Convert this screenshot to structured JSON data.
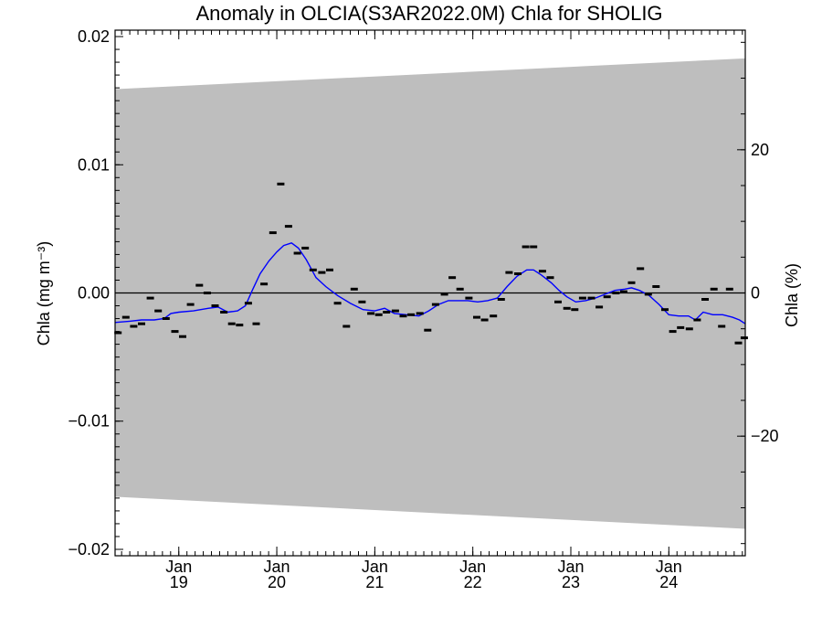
{
  "chart_data": {
    "type": "line",
    "title": "Anomaly in OLCIA(S3AR2022.0M) Chla for SHOLIG",
    "ylabel_left": "Chla (mg m⁻³)",
    "ylabel_right": "Chla (%)",
    "xlim": [
      2018.35,
      2024.78
    ],
    "ylim_left": [
      -0.0205,
      0.0205
    ],
    "ylim_right": [
      -36.7,
      36.7
    ],
    "x_ticks": [
      {
        "x": 2019.0,
        "top": "Jan",
        "bottom": "19"
      },
      {
        "x": 2020.0,
        "top": "Jan",
        "bottom": "20"
      },
      {
        "x": 2021.0,
        "top": "Jan",
        "bottom": "21"
      },
      {
        "x": 2022.0,
        "top": "Jan",
        "bottom": "22"
      },
      {
        "x": 2023.0,
        "top": "Jan",
        "bottom": "23"
      },
      {
        "x": 2024.0,
        "top": "Jan",
        "bottom": "24"
      }
    ],
    "y_ticks_left": [
      {
        "v": 0.02,
        "label": "0.02"
      },
      {
        "v": 0.01,
        "label": "0.01"
      },
      {
        "v": 0.0,
        "label": "0.00"
      },
      {
        "v": -0.01,
        "label": "−0.01"
      },
      {
        "v": -0.02,
        "label": "−0.02"
      }
    ],
    "y_ticks_right": [
      {
        "v": 20,
        "label": "20"
      },
      {
        "v": 0,
        "label": "0"
      },
      {
        "v": -20,
        "label": "−20"
      }
    ],
    "envelope": {
      "color": "#bebebe",
      "upper": [
        [
          2018.35,
          0.0159
        ],
        [
          2024.78,
          0.0183
        ]
      ],
      "lower": [
        [
          2018.35,
          -0.0159
        ],
        [
          2024.78,
          -0.0184
        ]
      ]
    },
    "zero_line_color": "#000000",
    "smooth_color": "#0000ff",
    "series": [
      {
        "kind": "monthly_points",
        "color": "#000000",
        "points": [
          [
            2018.38,
            -0.0031
          ],
          [
            2018.46,
            -0.0019
          ],
          [
            2018.54,
            -0.0026
          ],
          [
            2018.62,
            -0.0024
          ],
          [
            2018.71,
            -0.0004
          ],
          [
            2018.79,
            -0.0014
          ],
          [
            2018.87,
            -0.002
          ],
          [
            2018.96,
            -0.003
          ],
          [
            2019.04,
            -0.0034
          ],
          [
            2019.12,
            -0.0009
          ],
          [
            2019.21,
            0.0006
          ],
          [
            2019.29,
            0.0
          ],
          [
            2019.37,
            -0.001
          ],
          [
            2019.46,
            -0.0015
          ],
          [
            2019.54,
            -0.0024
          ],
          [
            2019.62,
            -0.0025
          ],
          [
            2019.71,
            -0.0008
          ],
          [
            2019.79,
            -0.0024
          ],
          [
            2019.87,
            0.0007
          ],
          [
            2019.96,
            0.0047
          ],
          [
            2020.04,
            0.0085
          ],
          [
            2020.12,
            0.0052
          ],
          [
            2020.21,
            0.0031
          ],
          [
            2020.29,
            0.0035
          ],
          [
            2020.37,
            0.0018
          ],
          [
            2020.46,
            0.0016
          ],
          [
            2020.54,
            0.0018
          ],
          [
            2020.62,
            -0.0008
          ],
          [
            2020.71,
            -0.0026
          ],
          [
            2020.79,
            0.0003
          ],
          [
            2020.87,
            -0.0007
          ],
          [
            2020.96,
            -0.0016
          ],
          [
            2021.04,
            -0.0017
          ],
          [
            2021.12,
            -0.0015
          ],
          [
            2021.21,
            -0.0014
          ],
          [
            2021.29,
            -0.0018
          ],
          [
            2021.37,
            -0.0017
          ],
          [
            2021.46,
            -0.0016
          ],
          [
            2021.54,
            -0.0029
          ],
          [
            2021.62,
            -0.0009
          ],
          [
            2021.71,
            -0.0001
          ],
          [
            2021.79,
            0.0012
          ],
          [
            2021.87,
            0.0003
          ],
          [
            2021.96,
            -0.0004
          ],
          [
            2022.04,
            -0.0019
          ],
          [
            2022.12,
            -0.0021
          ],
          [
            2022.21,
            -0.0018
          ],
          [
            2022.29,
            -0.0005
          ],
          [
            2022.37,
            0.0016
          ],
          [
            2022.46,
            0.0015
          ],
          [
            2022.54,
            0.0036
          ],
          [
            2022.62,
            0.0036
          ],
          [
            2022.71,
            0.0017
          ],
          [
            2022.79,
            0.0012
          ],
          [
            2022.87,
            -0.0007
          ],
          [
            2022.96,
            -0.0012
          ],
          [
            2023.04,
            -0.0013
          ],
          [
            2023.12,
            -0.0004
          ],
          [
            2023.21,
            -0.0004
          ],
          [
            2023.29,
            -0.0011
          ],
          [
            2023.37,
            -0.0003
          ],
          [
            2023.46,
            0.0
          ],
          [
            2023.54,
            0.0001
          ],
          [
            2023.62,
            0.0008
          ],
          [
            2023.71,
            0.0019
          ],
          [
            2023.79,
            -0.0001
          ],
          [
            2023.87,
            0.0005
          ],
          [
            2023.96,
            -0.0013
          ],
          [
            2024.04,
            -0.003
          ],
          [
            2024.12,
            -0.0027
          ],
          [
            2024.21,
            -0.0028
          ],
          [
            2024.29,
            -0.0021
          ],
          [
            2024.37,
            -0.0005
          ],
          [
            2024.46,
            0.0003
          ],
          [
            2024.54,
            -0.0026
          ],
          [
            2024.62,
            0.0003
          ],
          [
            2024.71,
            -0.0039
          ],
          [
            2024.77,
            -0.0035
          ]
        ]
      },
      {
        "kind": "smoothed_line",
        "color": "#0000ff",
        "points": [
          [
            2018.35,
            -0.0023
          ],
          [
            2018.5,
            -0.0022
          ],
          [
            2018.62,
            -0.0021
          ],
          [
            2018.75,
            -0.0021
          ],
          [
            2018.85,
            -0.002
          ],
          [
            2018.92,
            -0.0016
          ],
          [
            2019.0,
            -0.0015
          ],
          [
            2019.15,
            -0.0014
          ],
          [
            2019.3,
            -0.0012
          ],
          [
            2019.4,
            -0.0011
          ],
          [
            2019.5,
            -0.0015
          ],
          [
            2019.6,
            -0.0014
          ],
          [
            2019.68,
            -0.001
          ],
          [
            2019.75,
            0.0002
          ],
          [
            2019.83,
            0.0015
          ],
          [
            2019.92,
            0.0025
          ],
          [
            2020.0,
            0.0032
          ],
          [
            2020.07,
            0.0037
          ],
          [
            2020.15,
            0.0039
          ],
          [
            2020.22,
            0.0035
          ],
          [
            2020.3,
            0.0026
          ],
          [
            2020.4,
            0.0012
          ],
          [
            2020.5,
            0.0005
          ],
          [
            2020.62,
            -0.0002
          ],
          [
            2020.75,
            -0.0008
          ],
          [
            2020.88,
            -0.0013
          ],
          [
            2021.0,
            -0.0014
          ],
          [
            2021.1,
            -0.0012
          ],
          [
            2021.2,
            -0.0016
          ],
          [
            2021.32,
            -0.0017
          ],
          [
            2021.45,
            -0.0018
          ],
          [
            2021.55,
            -0.0014
          ],
          [
            2021.65,
            -0.0009
          ],
          [
            2021.75,
            -0.0006
          ],
          [
            2021.85,
            -0.0006
          ],
          [
            2021.95,
            -0.0006
          ],
          [
            2022.05,
            -0.0007
          ],
          [
            2022.15,
            -0.0006
          ],
          [
            2022.25,
            -0.0004
          ],
          [
            2022.35,
            0.0005
          ],
          [
            2022.45,
            0.0013
          ],
          [
            2022.55,
            0.0018
          ],
          [
            2022.62,
            0.0018
          ],
          [
            2022.7,
            0.0014
          ],
          [
            2022.8,
            0.0008
          ],
          [
            2022.88,
            0.0002
          ],
          [
            2022.96,
            -0.0003
          ],
          [
            2023.05,
            -0.0007
          ],
          [
            2023.15,
            -0.0006
          ],
          [
            2023.25,
            -0.0004
          ],
          [
            2023.35,
            -0.0001
          ],
          [
            2023.45,
            0.0002
          ],
          [
            2023.55,
            0.0003
          ],
          [
            2023.62,
            0.0004
          ],
          [
            2023.7,
            0.0002
          ],
          [
            2023.8,
            -0.0002
          ],
          [
            2023.9,
            -0.0009
          ],
          [
            2024.0,
            -0.0017
          ],
          [
            2024.1,
            -0.0018
          ],
          [
            2024.2,
            -0.0018
          ],
          [
            2024.27,
            -0.0021
          ],
          [
            2024.35,
            -0.0015
          ],
          [
            2024.45,
            -0.0017
          ],
          [
            2024.55,
            -0.0017
          ],
          [
            2024.65,
            -0.0019
          ],
          [
            2024.72,
            -0.0021
          ],
          [
            2024.78,
            -0.0024
          ]
        ]
      }
    ]
  }
}
